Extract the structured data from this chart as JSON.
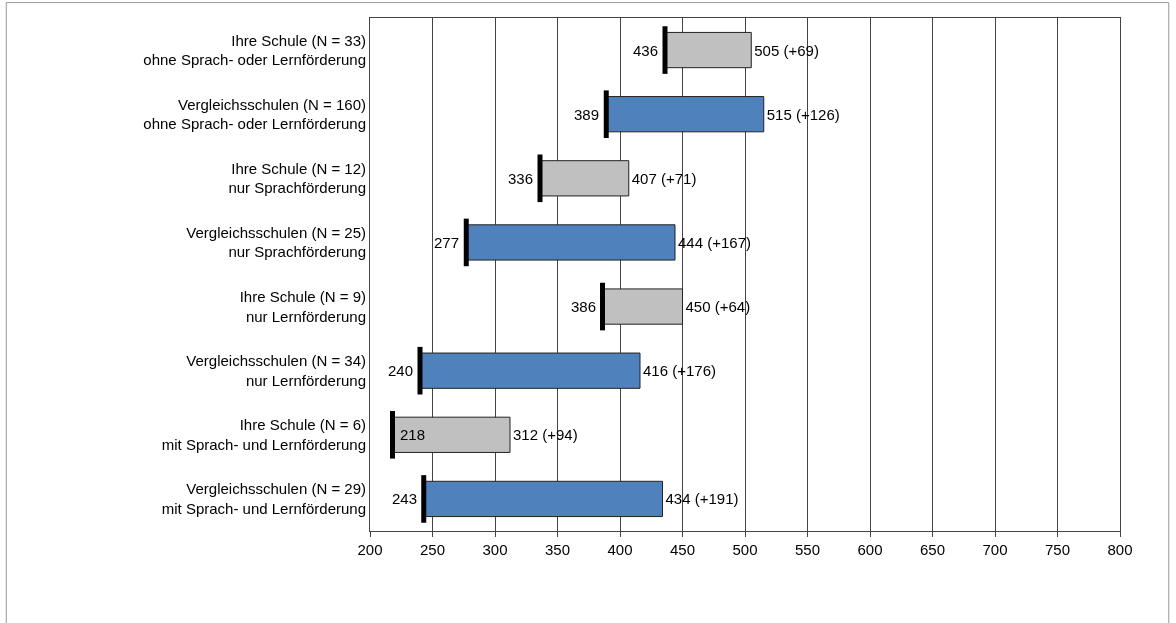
{
  "chart_data": {
    "type": "bar",
    "orientation": "horizontal",
    "categories": [
      "Ihre Schule (N = 33)\nohne Sprach- oder Lernförderung",
      "Vergleichsschulen (N = 160)\nohne Sprach- oder Lernförderung",
      "Ihre Schule (N = 12)\nnur Sprachförderung",
      "Vergleichsschulen (N = 25)\nnur Sprachförderung",
      "Ihre Schule (N = 9)\nnur Lernförderung",
      "Vergleichsschulen (N = 34)\nnur Lernförderung",
      "Ihre Schule (N = 6)\nmit Sprach- und Lernförderung",
      "Vergleichsschulen (N = 29)\nmit Sprach- und Lernförderung"
    ],
    "base": [
      436,
      389,
      336,
      277,
      386,
      240,
      218,
      243
    ],
    "values": [
      69,
      126,
      71,
      167,
      64,
      176,
      94,
      191
    ],
    "colors": [
      "#c0c0c0",
      "#4f81bd",
      "#c0c0c0",
      "#4f81bd",
      "#c0c0c0",
      "#4f81bd",
      "#c0c0c0",
      "#4f81bd"
    ],
    "value_labels": [
      "505 (+69)",
      "515 (+126)",
      "407 (+71)",
      "444 (+167)",
      "450 (+64)",
      "416 (+176)",
      "312 (+94)",
      "434 (+191)"
    ],
    "annotations": [
      {
        "text": "436",
        "x": 436,
        "y": "Ihre Schule (N = 33)\nohne Sprach- oder Lernförderung"
      },
      {
        "text": "389",
        "x": 389,
        "y": "Vergleichsschulen (N = 160)\nohne Sprach- oder Lernförderung"
      },
      {
        "text": "336",
        "x": 336,
        "y": "Ihre Schule (N = 12)\nnur Sprachförderung"
      },
      {
        "text": "277",
        "x": 277,
        "y": "Vergleichsschulen (N = 25)\nnur Sprachförderung"
      },
      {
        "text": "386",
        "x": 386,
        "y": "Ihre Schule (N = 9)\nnur Lernförderung"
      },
      {
        "text": "240",
        "x": 240,
        "y": "Vergleichsschulen (N = 34)\nnur Lernförderung"
      },
      {
        "text": "218",
        "x": 218,
        "y": "Ihre Schule (N = 6)\nmit Sprach- und Lernförderung"
      },
      {
        "text": "243",
        "x": 243,
        "y": "Vergleichsschulen (N = 29)\nmit Sprach- und Lernförderung"
      }
    ],
    "xlim": [
      200,
      800
    ],
    "xticks": [
      200,
      250,
      300,
      350,
      400,
      450,
      500,
      550,
      600,
      650,
      700,
      750,
      800
    ],
    "grid": "x"
  }
}
